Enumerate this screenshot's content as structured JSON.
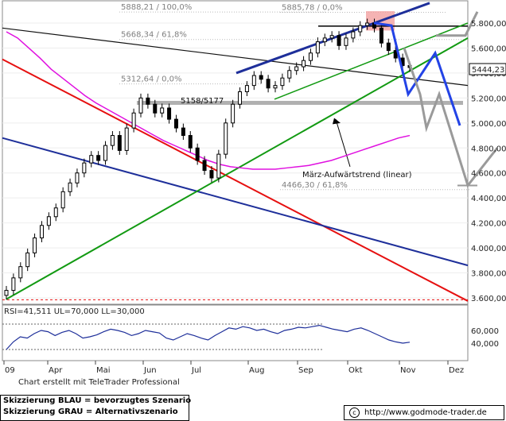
{
  "chart_data": {
    "type": "candlestick",
    "title": "",
    "ylim": [
      3560,
      5960
    ],
    "y_ticks": [
      "5.800,00",
      "5.600,00",
      "5.400,00",
      "5.200,00",
      "5.000,00",
      "4.800,00",
      "4.600,00",
      "4.400,00",
      "4.200,00",
      "4.000,00",
      "3.800,00",
      "3.600,00"
    ],
    "y_tick_values": [
      5800,
      5600,
      5400,
      5200,
      5000,
      4800,
      4600,
      4400,
      4200,
      4000,
      3800,
      3600
    ],
    "x_ticks": [
      "09",
      "Apr",
      "Mai",
      "Jun",
      "Jul",
      "Aug",
      "Sep",
      "Okt",
      "Nov",
      "Dez"
    ],
    "last_price_label": "5444,23",
    "last_price": 5444.23,
    "fib_levels": [
      {
        "label": "5888,21 / 100,0%",
        "value": 5888.21
      },
      {
        "label": "5885,78 / 0,0%",
        "value": 5885.78
      },
      {
        "label": "5668,34 / 61,8%",
        "value": 5668.34
      },
      {
        "label": "5312,64 / 0,0%",
        "value": 5312.64
      },
      {
        "label": "4466,30 / 61,8%",
        "value": 4466.3
      }
    ],
    "support_zone_label": "5158/5177",
    "support_zone": [
      5158,
      5177
    ],
    "trend_annotation": "März-Aufwärtstrend (linear)",
    "series": [
      {
        "name": "close",
        "values": [
          3660,
          3760,
          3850,
          3960,
          4080,
          4180,
          4250,
          4320,
          4450,
          4520,
          4600,
          4680,
          4740,
          4700,
          4820,
          4900,
          4780,
          4960,
          5080,
          5200,
          5150,
          5080,
          5120,
          5030,
          4960,
          4900,
          4800,
          4700,
          4620,
          4560,
          4750,
          5000,
          5150,
          5250,
          5300,
          5380,
          5350,
          5280,
          5300,
          5360,
          5420,
          5450,
          5500,
          5560,
          5650,
          5680,
          5700,
          5620,
          5680,
          5730,
          5780,
          5800,
          5760,
          5640,
          5580,
          5520,
          5460,
          5444
        ]
      }
    ],
    "ma_values": [
      5730,
      5680,
      5600,
      5520,
      5430,
      5360,
      5290,
      5220,
      5160,
      5110,
      5060,
      5010,
      4960,
      4910,
      4860,
      4820,
      4780,
      4740,
      4700,
      4670,
      4650,
      4640,
      4630,
      4630,
      4630,
      4640,
      4650,
      4660,
      4680,
      4700,
      4730,
      4760,
      4790,
      4820,
      4850,
      4880,
      4900
    ],
    "blue_scenario": [
      5800,
      5780,
      5230,
      5560,
      4980
    ],
    "gray_scenario": [
      5600,
      5230,
      4960,
      5230,
      4500,
      4800
    ],
    "rsi": {
      "label": "RSI=41,511  UL=70,000  LL=30,000",
      "value": 41.511,
      "ul": 70,
      "ll": 30,
      "y_ticks": [
        "60,000",
        "40,000"
      ],
      "values": [
        30,
        42,
        50,
        48,
        55,
        60,
        58,
        52,
        57,
        60,
        55,
        48,
        50,
        53,
        58,
        62,
        60,
        57,
        52,
        55,
        60,
        58,
        56,
        48,
        45,
        50,
        55,
        52,
        48,
        45,
        52,
        58,
        64,
        62,
        66,
        64,
        60,
        62,
        58,
        55,
        60,
        62,
        65,
        64,
        66,
        68,
        65,
        62,
        60,
        58,
        62,
        64,
        60,
        55,
        50,
        45,
        42,
        40,
        41.5
      ]
    }
  },
  "legend": {
    "blue": "Skizzierung BLAU = bevorzugtes Szenario",
    "gray": "Skizzierung GRAU = Alternativszenario"
  },
  "charted_with": "Chart erstellt mit TeleTrader Professional",
  "credit": "http://www.godmode-trader.de",
  "colors": {
    "blue": "#1e2f9a",
    "bright_blue": "#2343e6",
    "green": "#129a12",
    "red": "#e61010",
    "magenta": "#e010e0",
    "gray": "#9a9a9a",
    "candle": "#000000"
  }
}
